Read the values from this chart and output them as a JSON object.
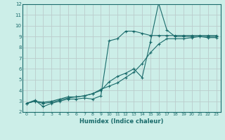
{
  "xlabel": "Humidex (Indice chaleur)",
  "bg_color": "#cceee8",
  "grid_color": "#bbcccc",
  "line_color": "#1a6b6b",
  "xlim": [
    -0.5,
    23.5
  ],
  "ylim": [
    2,
    12
  ],
  "xticks": [
    0,
    1,
    2,
    3,
    4,
    5,
    6,
    7,
    8,
    9,
    10,
    11,
    12,
    13,
    14,
    15,
    16,
    17,
    18,
    19,
    20,
    21,
    22,
    23
  ],
  "yticks": [
    2,
    3,
    4,
    5,
    6,
    7,
    8,
    9,
    10,
    11,
    12
  ],
  "line1_x": [
    0,
    1,
    2,
    3,
    4,
    5,
    6,
    7,
    8,
    9,
    10,
    11,
    12,
    13,
    14,
    15,
    16,
    17,
    18,
    19,
    20,
    21,
    22,
    23
  ],
  "line1_y": [
    2.8,
    3.1,
    2.5,
    2.8,
    3.0,
    3.2,
    3.2,
    3.3,
    3.2,
    3.5,
    8.6,
    8.8,
    9.5,
    9.5,
    9.3,
    9.1,
    9.1,
    9.1,
    9.1,
    9.1,
    9.1,
    9.1,
    9.1,
    9.1
  ],
  "line2_x": [
    0,
    1,
    2,
    3,
    4,
    5,
    6,
    7,
    8,
    9,
    10,
    11,
    12,
    13,
    14,
    15,
    16,
    17,
    18,
    19,
    20,
    21,
    22,
    23
  ],
  "line2_y": [
    2.8,
    3.0,
    2.8,
    2.9,
    3.1,
    3.3,
    3.4,
    3.5,
    3.7,
    4.0,
    4.8,
    5.3,
    5.6,
    6.0,
    5.2,
    8.5,
    12.1,
    9.6,
    9.0,
    9.0,
    9.0,
    9.0,
    9.0,
    9.0
  ],
  "line3_x": [
    0,
    1,
    2,
    3,
    4,
    5,
    6,
    7,
    8,
    9,
    10,
    11,
    12,
    13,
    14,
    15,
    16,
    17,
    18,
    19,
    20,
    21,
    22,
    23
  ],
  "line3_y": [
    2.8,
    3.0,
    2.9,
    3.0,
    3.2,
    3.4,
    3.4,
    3.5,
    3.7,
    4.1,
    4.4,
    4.7,
    5.2,
    5.7,
    6.5,
    7.5,
    8.3,
    8.8,
    8.8,
    8.8,
    8.9,
    9.0,
    8.9,
    8.9
  ]
}
